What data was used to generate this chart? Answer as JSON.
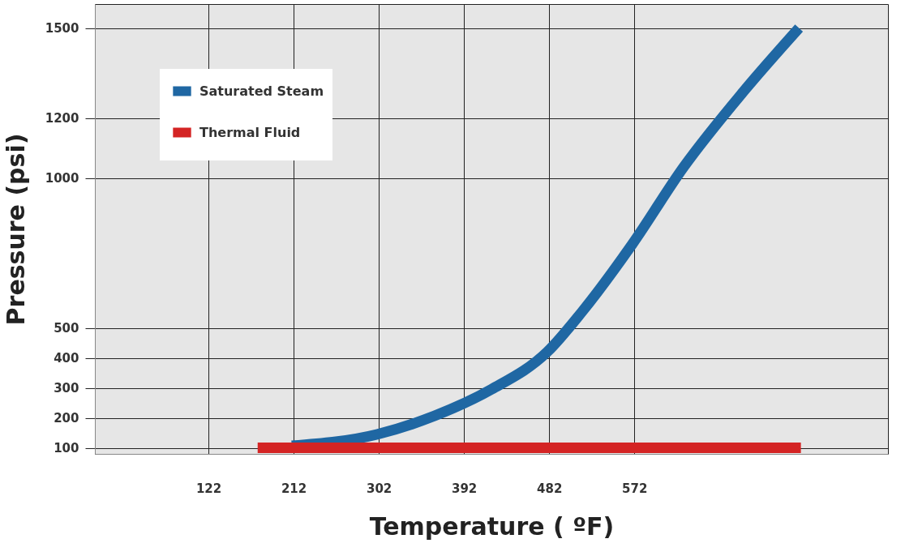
{
  "chart_data": {
    "type": "line",
    "xlabel": "Temperature ( ºF)",
    "ylabel": "Pressure (psi)",
    "xlim": [
      2,
      840
    ],
    "xticks": [
      122,
      212,
      302,
      392,
      482,
      572
    ],
    "ylim": [
      80,
      1580
    ],
    "yticks": [
      100,
      200,
      300,
      400,
      500,
      1000,
      1200,
      1500
    ],
    "grid": true,
    "legend": "top left",
    "line_style": "solid",
    "marker": "none",
    "series": [
      {
        "name": "Saturated Steam",
        "color": "#1f67a3",
        "x": [
          210,
          300,
          361,
          421,
          480,
          516,
          570,
          624,
          687,
          746
        ],
        "values": [
          107,
          145,
          207,
          295,
          420,
          551,
          780,
          1036,
          1287,
          1500
        ]
      },
      {
        "name": "Thermal Fluid",
        "color": "#d42424",
        "x": [
          174,
          748
        ],
        "values": [
          100,
          100
        ]
      }
    ]
  }
}
